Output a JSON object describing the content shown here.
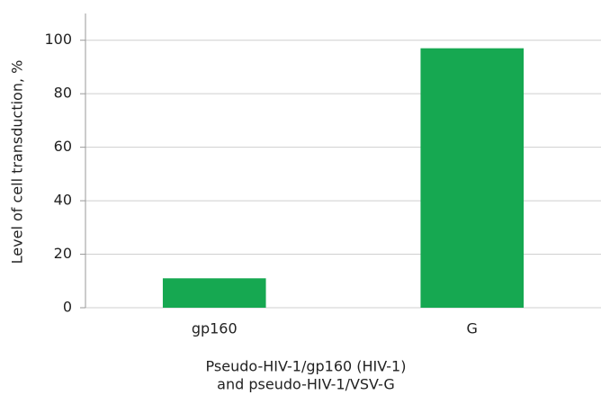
{
  "chart_data": {
    "type": "bar",
    "ylabel": "Level of cell transduction, %",
    "xlabel": [
      "Pseudo-HIV-1/gp160 (HIV-1)",
      "and pseudo-HIV-1/VSV-G"
    ],
    "categories": [
      "gp160",
      "G"
    ],
    "values": [
      11,
      97
    ],
    "color": "#16a851",
    "ylim": [
      0,
      110
    ],
    "yticks": [
      0,
      20,
      40,
      60,
      80,
      100
    ],
    "grid": true
  }
}
